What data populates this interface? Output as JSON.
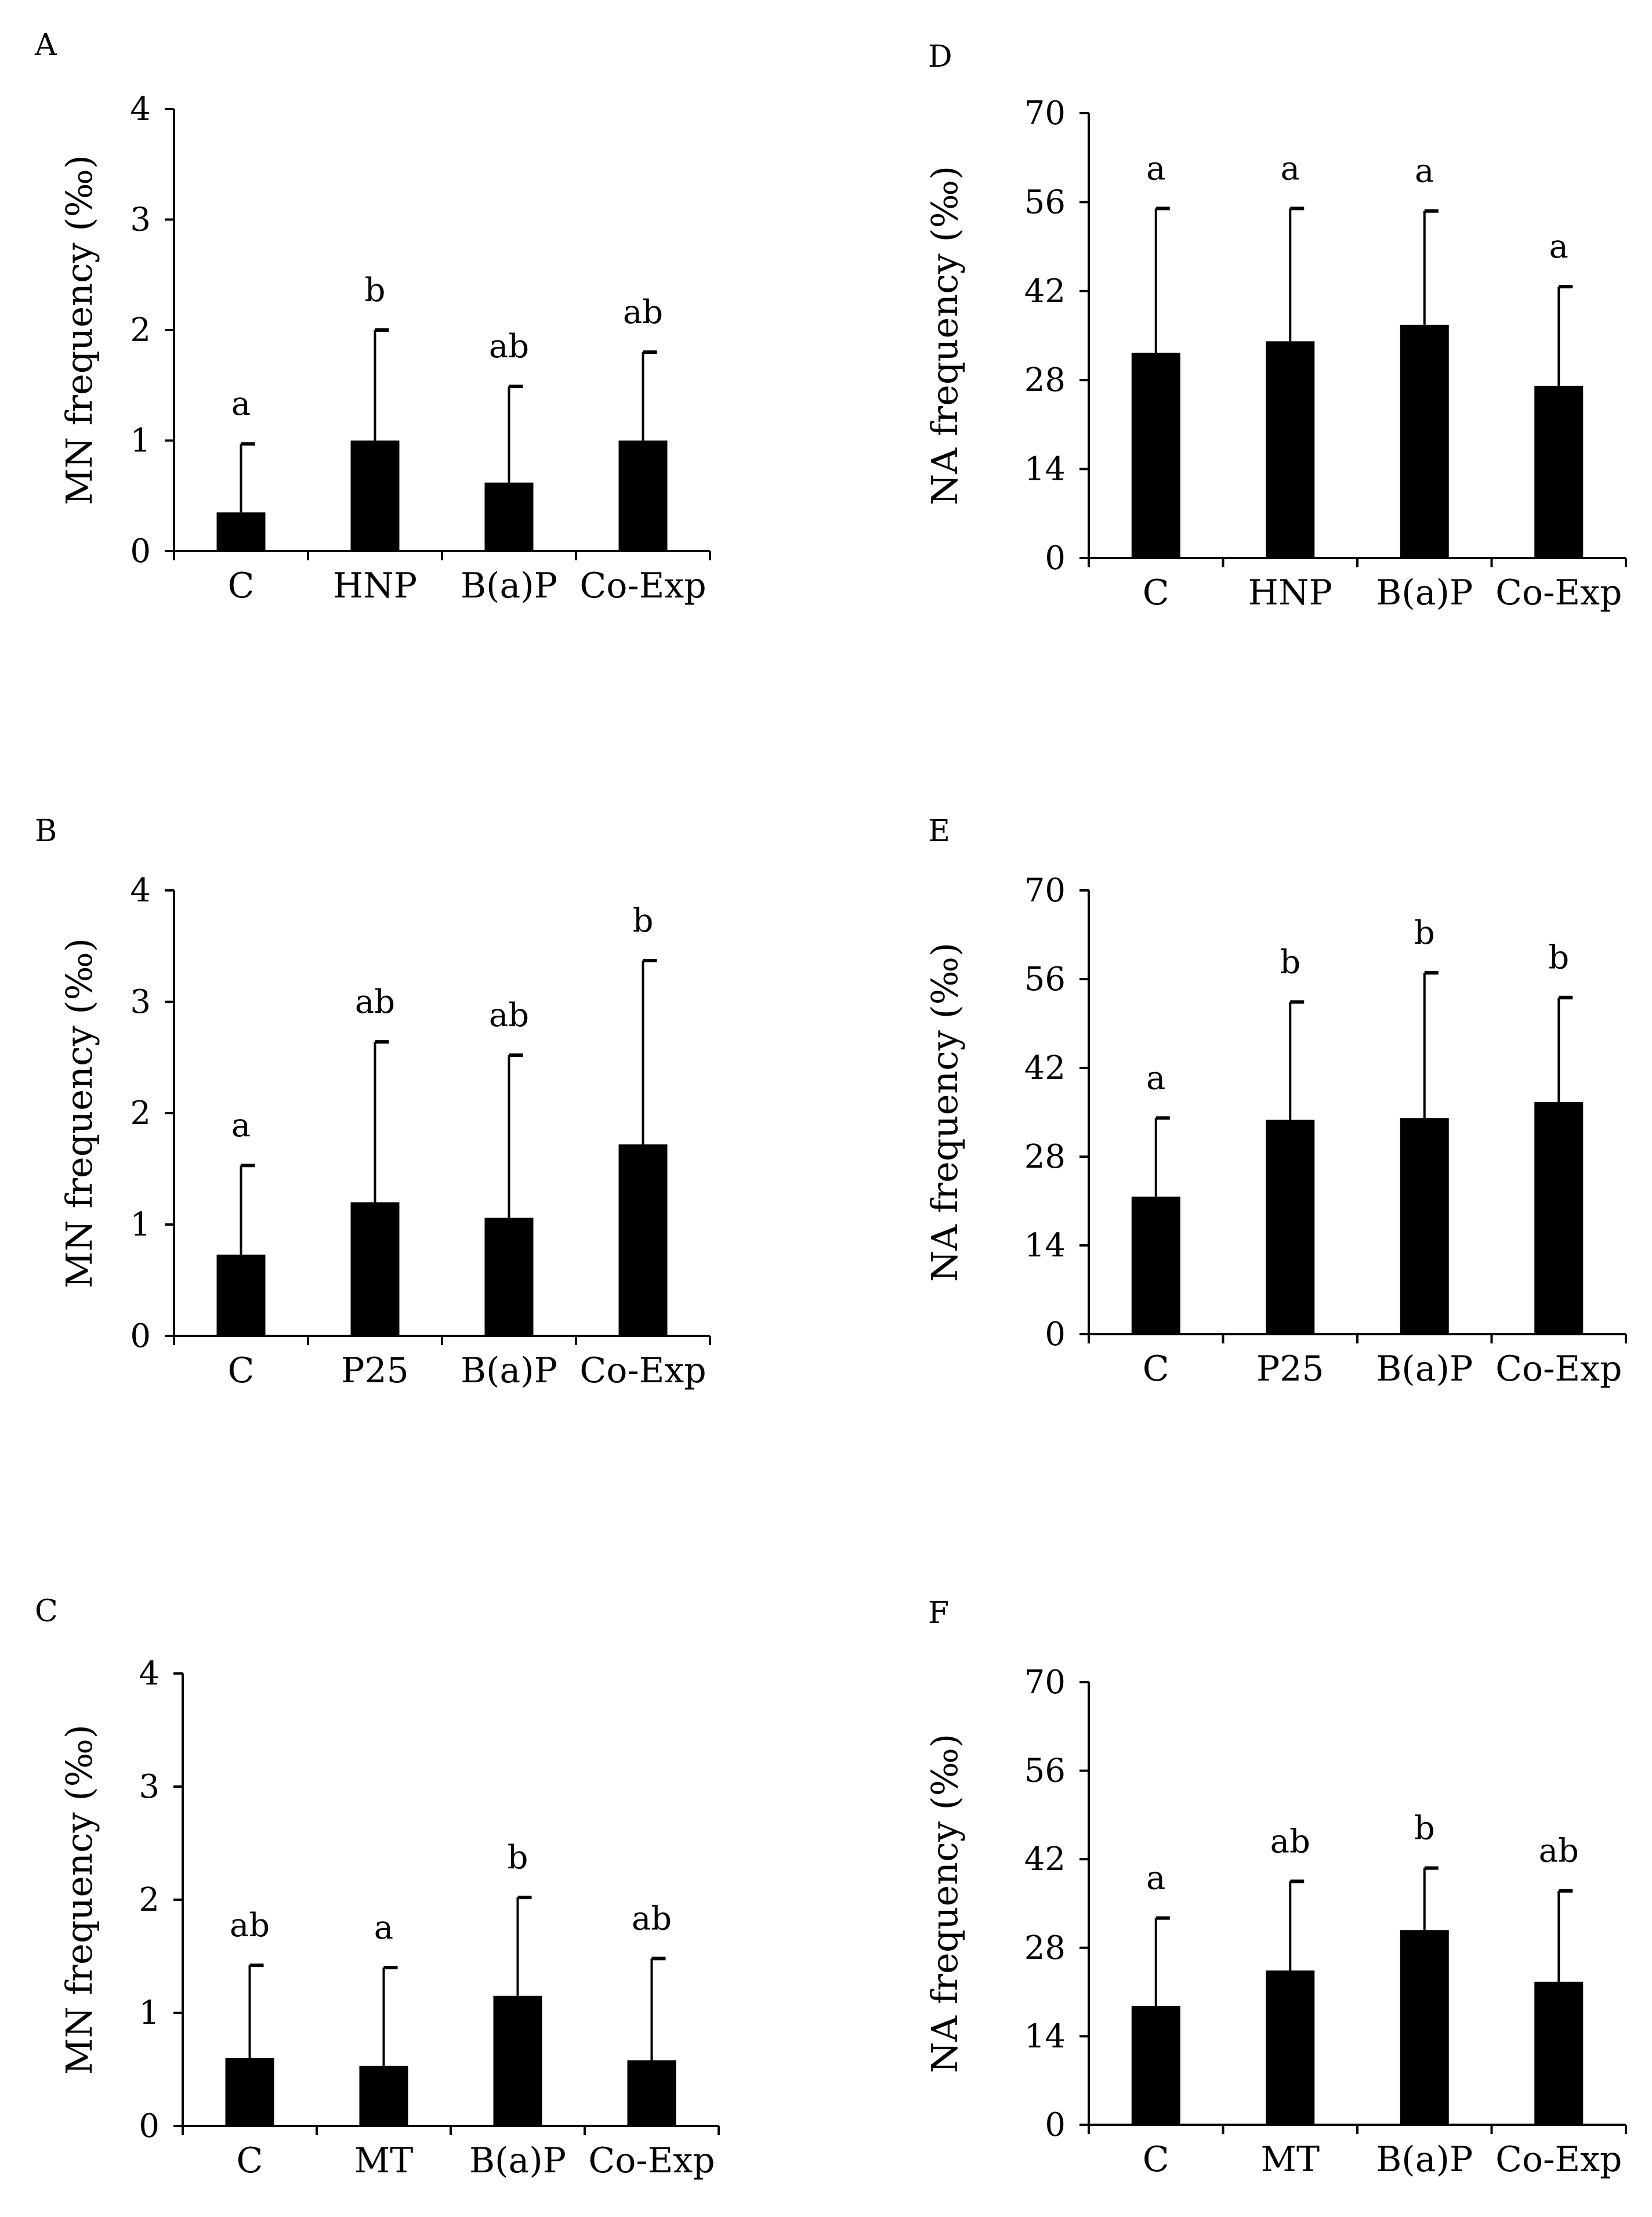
{
  "chart_data": [
    {
      "panel": "A",
      "type": "bar",
      "ylabel": "MN frequency (‰)",
      "ylim": [
        0,
        4
      ],
      "yticks": [
        "0",
        "1",
        "2",
        "3",
        "4"
      ],
      "categories": [
        "C",
        "HNP",
        "B(a)P",
        "Co-Exp"
      ],
      "values": [
        0.35,
        1.0,
        0.62,
        1.0
      ],
      "errors": [
        0.62,
        1.0,
        0.87,
        0.8
      ],
      "significance": [
        "a",
        "b",
        "ab",
        "ab"
      ]
    },
    {
      "panel": "B",
      "type": "bar",
      "ylabel": "MN frequency (‰)",
      "ylim": [
        0,
        4
      ],
      "yticks": [
        "0",
        "1",
        "2",
        "3",
        "4"
      ],
      "categories": [
        "C",
        "P25",
        "B(a)P",
        "Co-Exp"
      ],
      "values": [
        0.73,
        1.2,
        1.06,
        1.72
      ],
      "errors": [
        0.8,
        1.44,
        1.46,
        1.65
      ],
      "significance": [
        "a",
        "ab",
        "ab",
        "b"
      ]
    },
    {
      "panel": "C",
      "type": "bar",
      "ylabel": "MN frequency (‰)",
      "ylim": [
        0,
        4
      ],
      "yticks": [
        "0",
        "1",
        "2",
        "3",
        "4"
      ],
      "categories": [
        "C",
        "MT",
        "B(a)P",
        "Co-Exp"
      ],
      "values": [
        0.6,
        0.53,
        1.15,
        0.58
      ],
      "errors": [
        0.82,
        0.87,
        0.87,
        0.9
      ],
      "significance": [
        "ab",
        "a",
        "b",
        "ab"
      ]
    },
    {
      "panel": "D",
      "type": "bar",
      "ylabel": "NA frequency (‰)",
      "ylim": [
        0,
        70
      ],
      "yticks": [
        "0",
        "14",
        "28",
        "42",
        "56",
        "70"
      ],
      "categories": [
        "C",
        "HNP",
        "B(a)P",
        "Co-Exp"
      ],
      "values": [
        32.3,
        34.1,
        36.7,
        27.1
      ],
      "errors": [
        22.7,
        20.9,
        17.9,
        15.6
      ],
      "significance": [
        "a",
        "a",
        "a",
        "a"
      ]
    },
    {
      "panel": "E",
      "type": "bar",
      "ylabel": "NA frequency (‰)",
      "ylim": [
        0,
        70
      ],
      "yticks": [
        "0",
        "14",
        "28",
        "42",
        "56",
        "70"
      ],
      "categories": [
        "C",
        "P25",
        "B(a)P",
        "Co-Exp"
      ],
      "values": [
        21.7,
        33.8,
        34.1,
        36.6
      ],
      "errors": [
        12.4,
        18.6,
        22.9,
        16.5
      ],
      "significance": [
        "a",
        "b",
        "b",
        "b"
      ]
    },
    {
      "panel": "F",
      "type": "bar",
      "ylabel": "NA frequency (‰)",
      "ylim": [
        0,
        70
      ],
      "yticks": [
        "0",
        "14",
        "28",
        "42",
        "56",
        "70"
      ],
      "categories": [
        "C",
        "MT",
        "B(a)P",
        "Co-Exp"
      ],
      "values": [
        18.8,
        24.4,
        30.8,
        22.6
      ],
      "errors": [
        13.9,
        14.1,
        9.8,
        14.4
      ],
      "significance": [
        "a",
        "ab",
        "b",
        "ab"
      ]
    }
  ]
}
